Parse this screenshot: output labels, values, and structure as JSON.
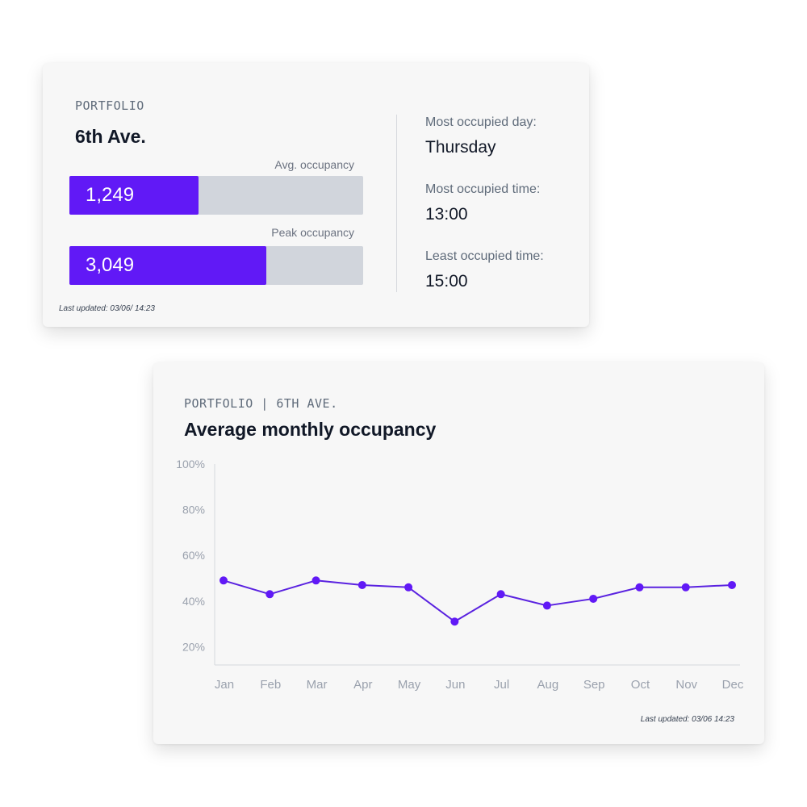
{
  "summary": {
    "eyebrow": "PORTFOLIO",
    "location": "6th Ave.",
    "bars": [
      {
        "label": "Avg. occupancy",
        "value_text": "1,249",
        "fill_fraction": 0.44
      },
      {
        "label": "Peak occupancy",
        "value_text": "3,049",
        "fill_fraction": 0.67
      }
    ],
    "last_updated": "Last updated: 03/06/ 14:23",
    "stats": [
      {
        "label": "Most occupied day:",
        "value": "Thursday"
      },
      {
        "label": "Most occupied time:",
        "value": "13:00"
      },
      {
        "label": "Least occupied time:",
        "value": "15:00"
      }
    ]
  },
  "chart_card": {
    "eyebrow": "PORTFOLIO | 6TH AVE.",
    "title": "Average monthly occupancy",
    "last_updated": "Last updated: 03/06 14:23"
  },
  "colors": {
    "accent": "#6119f6",
    "line": "#5a22e0",
    "track": "#d1d5dc",
    "card_bg": "#f7f7f7"
  },
  "chart_data": {
    "type": "line",
    "title": "Average monthly occupancy",
    "xlabel": "",
    "ylabel": "",
    "categories": [
      "Jan",
      "Feb",
      "Mar",
      "Apr",
      "May",
      "Jun",
      "Jul",
      "Aug",
      "Sep",
      "Oct",
      "Nov",
      "Dec"
    ],
    "y_ticks": [
      "100%",
      "80%",
      "60%",
      "40%",
      "20%"
    ],
    "ylim": [
      12,
      100
    ],
    "series": [
      {
        "values": [
          49,
          43,
          49,
          47,
          46,
          31,
          43,
          38,
          41,
          46,
          46,
          47
        ]
      }
    ],
    "grid": false,
    "legend": "none"
  }
}
